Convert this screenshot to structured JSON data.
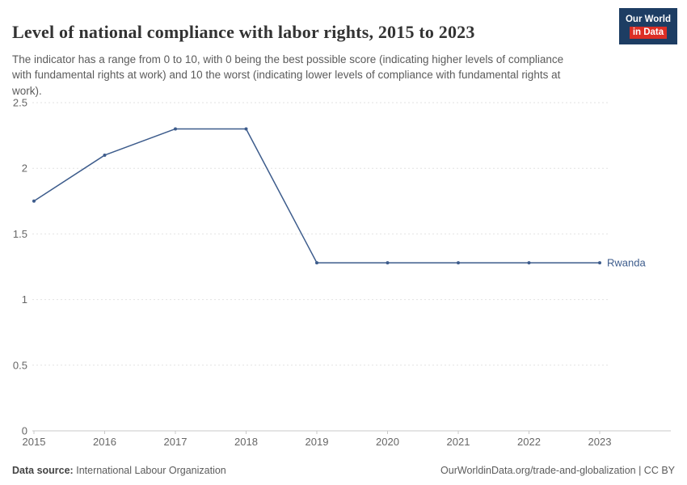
{
  "header": {
    "title": "Level of national compliance with labor rights, 2015 to 2023",
    "subtitle": "The indicator has a range from 0 to 10, with 0 being the best possible score (indicating higher levels of compliance with fundamental rights at work) and 10 the worst (indicating lower levels of compliance with fundamental rights at work).",
    "logo": {
      "line1": "Our World",
      "line2": "in Data",
      "bg_color": "#1d3d63",
      "accent_color": "#dc2e24"
    }
  },
  "chart_data": {
    "type": "line",
    "title": "Level of national compliance with labor rights, 2015 to 2023",
    "x": [
      2015,
      2016,
      2017,
      2018,
      2019,
      2020,
      2021,
      2022,
      2023
    ],
    "series": [
      {
        "name": "Rwanda",
        "values": [
          1.75,
          2.1,
          2.3,
          2.3,
          1.28,
          1.28,
          1.28,
          1.28,
          1.28
        ],
        "color": "#3d5c8c"
      }
    ],
    "xlabel": "",
    "ylabel": "",
    "ylim": [
      0,
      2.5
    ],
    "yticks": [
      0,
      0.5,
      1,
      1.5,
      2,
      2.5
    ],
    "grid": "horizontal-dashed",
    "legend": "end-of-line-label",
    "colors": {
      "gridline": "#e2e2e2",
      "baseline": "#c8c8c8",
      "tick_label": "#666666"
    }
  },
  "footer": {
    "source_label": "Data source:",
    "source_value": "International Labour Organization",
    "credit": "OurWorldinData.org/trade-and-globalization | CC BY"
  }
}
